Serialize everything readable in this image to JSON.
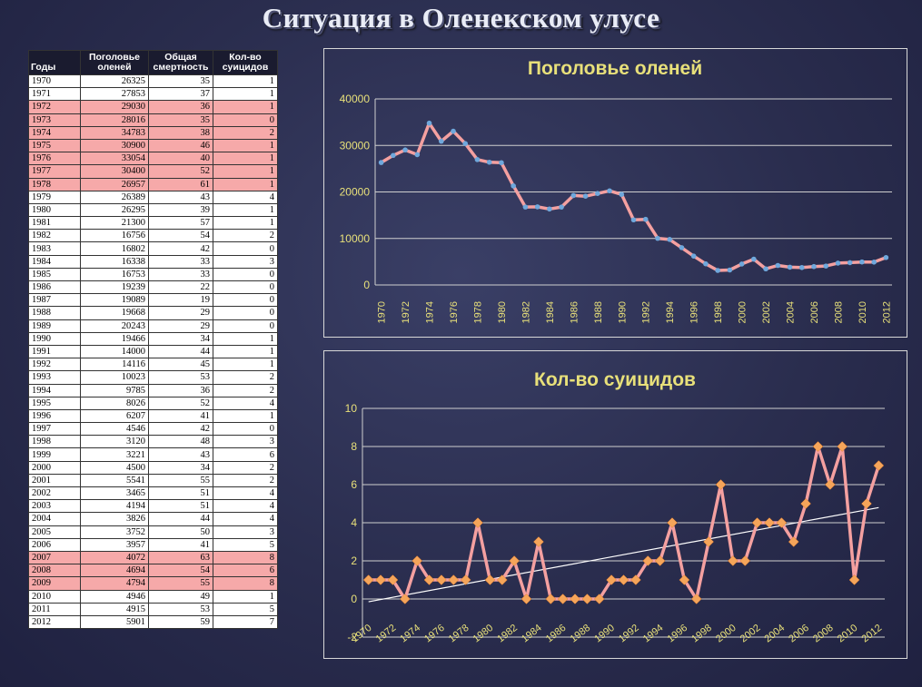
{
  "page": {
    "title": "Ситуация в Оленекском улусе"
  },
  "table": {
    "headers": [
      "Годы",
      "Поголовье оленей",
      "Общая смертность",
      "Кол-во суицидов"
    ],
    "rows": [
      [
        "1970",
        "26325",
        "35",
        "1"
      ],
      [
        "1971",
        "27853",
        "37",
        "1"
      ],
      [
        "1972",
        "29030",
        "36",
        "1"
      ],
      [
        "1973",
        "28016",
        "35",
        "0"
      ],
      [
        "1974",
        "34783",
        "38",
        "2"
      ],
      [
        "1975",
        "30900",
        "46",
        "1"
      ],
      [
        "1976",
        "33054",
        "40",
        "1"
      ],
      [
        "1977",
        "30400",
        "52",
        "1"
      ],
      [
        "1978",
        "26957",
        "61",
        "1"
      ],
      [
        "1979",
        "26389",
        "43",
        "4"
      ],
      [
        "1980",
        "26295",
        "39",
        "1"
      ],
      [
        "1981",
        "21300",
        "57",
        "1"
      ],
      [
        "1982",
        "16756",
        "54",
        "2"
      ],
      [
        "1983",
        "16802",
        "42",
        "0"
      ],
      [
        "1984",
        "16338",
        "33",
        "3"
      ],
      [
        "1985",
        "16753",
        "33",
        "0"
      ],
      [
        "1986",
        "19239",
        "22",
        "0"
      ],
      [
        "1987",
        "19089",
        "19",
        "0"
      ],
      [
        "1988",
        "19668",
        "29",
        "0"
      ],
      [
        "1989",
        "20243",
        "29",
        "0"
      ],
      [
        "1990",
        "19466",
        "34",
        "1"
      ],
      [
        "1991",
        "14000",
        "44",
        "1"
      ],
      [
        "1992",
        "14116",
        "45",
        "1"
      ],
      [
        "1993",
        "10023",
        "53",
        "2"
      ],
      [
        "1994",
        "9785",
        "36",
        "2"
      ],
      [
        "1995",
        "8026",
        "52",
        "4"
      ],
      [
        "1996",
        "6207",
        "41",
        "1"
      ],
      [
        "1997",
        "4546",
        "42",
        "0"
      ],
      [
        "1998",
        "3120",
        "48",
        "3"
      ],
      [
        "1999",
        "3221",
        "43",
        "6"
      ],
      [
        "2000",
        "4500",
        "34",
        "2"
      ],
      [
        "2001",
        "5541",
        "55",
        "2"
      ],
      [
        "2002",
        "3465",
        "51",
        "4"
      ],
      [
        "2003",
        "4194",
        "51",
        "4"
      ],
      [
        "2004",
        "3826",
        "44",
        "4"
      ],
      [
        "2005",
        "3752",
        "50",
        "3"
      ],
      [
        "2006",
        "3957",
        "41",
        "5"
      ],
      [
        "2007",
        "4072",
        "63",
        "8"
      ],
      [
        "2008",
        "4694",
        "54",
        "6"
      ],
      [
        "2009",
        "4794",
        "55",
        "8"
      ],
      [
        "2010",
        "4946",
        "49",
        "1"
      ],
      [
        "2011",
        "4915",
        "53",
        "5"
      ],
      [
        "2012",
        "5901",
        "59",
        "7"
      ]
    ],
    "highlighted_years": [
      "1972",
      "1973",
      "1974",
      "1975",
      "1976",
      "1977",
      "1978",
      "2007",
      "2008",
      "2009"
    ],
    "highlight_color": "#f6a9a9"
  },
  "chart_data": [
    {
      "type": "line",
      "title": "Поголовье оленей",
      "x": [
        1970,
        1971,
        1972,
        1973,
        1974,
        1975,
        1976,
        1977,
        1978,
        1979,
        1980,
        1981,
        1982,
        1983,
        1984,
        1985,
        1986,
        1987,
        1988,
        1989,
        1990,
        1991,
        1992,
        1993,
        1994,
        1995,
        1996,
        1997,
        1998,
        1999,
        2000,
        2001,
        2002,
        2003,
        2004,
        2005,
        2006,
        2007,
        2008,
        2009,
        2010,
        2011,
        2012
      ],
      "x_tick_labels": [
        "1970",
        "1972",
        "1974",
        "1976",
        "1978",
        "1980",
        "1982",
        "1984",
        "1986",
        "1988",
        "1990",
        "1992",
        "1994",
        "1996",
        "1998",
        "2000",
        "2002",
        "2004",
        "2006",
        "2008",
        "2010",
        "2012"
      ],
      "values": [
        26325,
        27853,
        29030,
        28016,
        34783,
        30900,
        33054,
        30400,
        26957,
        26389,
        26295,
        21300,
        16756,
        16802,
        16338,
        16753,
        19239,
        19089,
        19668,
        20243,
        19466,
        14000,
        14116,
        10023,
        9785,
        8026,
        6207,
        4546,
        3120,
        3221,
        4500,
        5541,
        3465,
        4194,
        3826,
        3752,
        3957,
        4072,
        4694,
        4794,
        4946,
        4915,
        5901
      ],
      "ylim": [
        0,
        40000
      ],
      "y_ticks": [
        0,
        10000,
        20000,
        30000,
        40000
      ],
      "grid": true,
      "line_color": "#f4a0a0",
      "marker_color": "#6fa8dc"
    },
    {
      "type": "line",
      "title": "Кол-во суицидов",
      "x": [
        1970,
        1971,
        1972,
        1973,
        1974,
        1975,
        1976,
        1977,
        1978,
        1979,
        1980,
        1981,
        1982,
        1983,
        1984,
        1985,
        1986,
        1987,
        1988,
        1989,
        1990,
        1991,
        1992,
        1993,
        1994,
        1995,
        1996,
        1997,
        1998,
        1999,
        2000,
        2001,
        2002,
        2003,
        2004,
        2005,
        2006,
        2007,
        2008,
        2009,
        2010,
        2011,
        2012
      ],
      "x_tick_labels": [
        "1970",
        "1972",
        "1974",
        "1976",
        "1978",
        "1980",
        "1982",
        "1984",
        "1986",
        "1988",
        "1990",
        "1992",
        "1994",
        "1996",
        "1998",
        "2000",
        "2002",
        "2004",
        "2006",
        "2008",
        "2010",
        "2012"
      ],
      "values": [
        1,
        1,
        1,
        0,
        2,
        1,
        1,
        1,
        1,
        4,
        1,
        1,
        2,
        0,
        3,
        0,
        0,
        0,
        0,
        0,
        1,
        1,
        1,
        2,
        2,
        4,
        1,
        0,
        3,
        6,
        2,
        2,
        4,
        4,
        4,
        3,
        5,
        8,
        6,
        8,
        1,
        5,
        7
      ],
      "ylim": [
        -2,
        10
      ],
      "y_ticks": [
        -2,
        0,
        2,
        4,
        6,
        8,
        10
      ],
      "trendline": {
        "type": "linear",
        "color": "#ffffff"
      },
      "grid": true,
      "line_color": "#f4a0a0",
      "marker_color": "#f5a55a"
    }
  ],
  "colors": {
    "title_text": "#e9ecf6",
    "chart_title": "#e8e07a",
    "axis_text": "#e8e07a",
    "grid": "#cfcfcf"
  }
}
